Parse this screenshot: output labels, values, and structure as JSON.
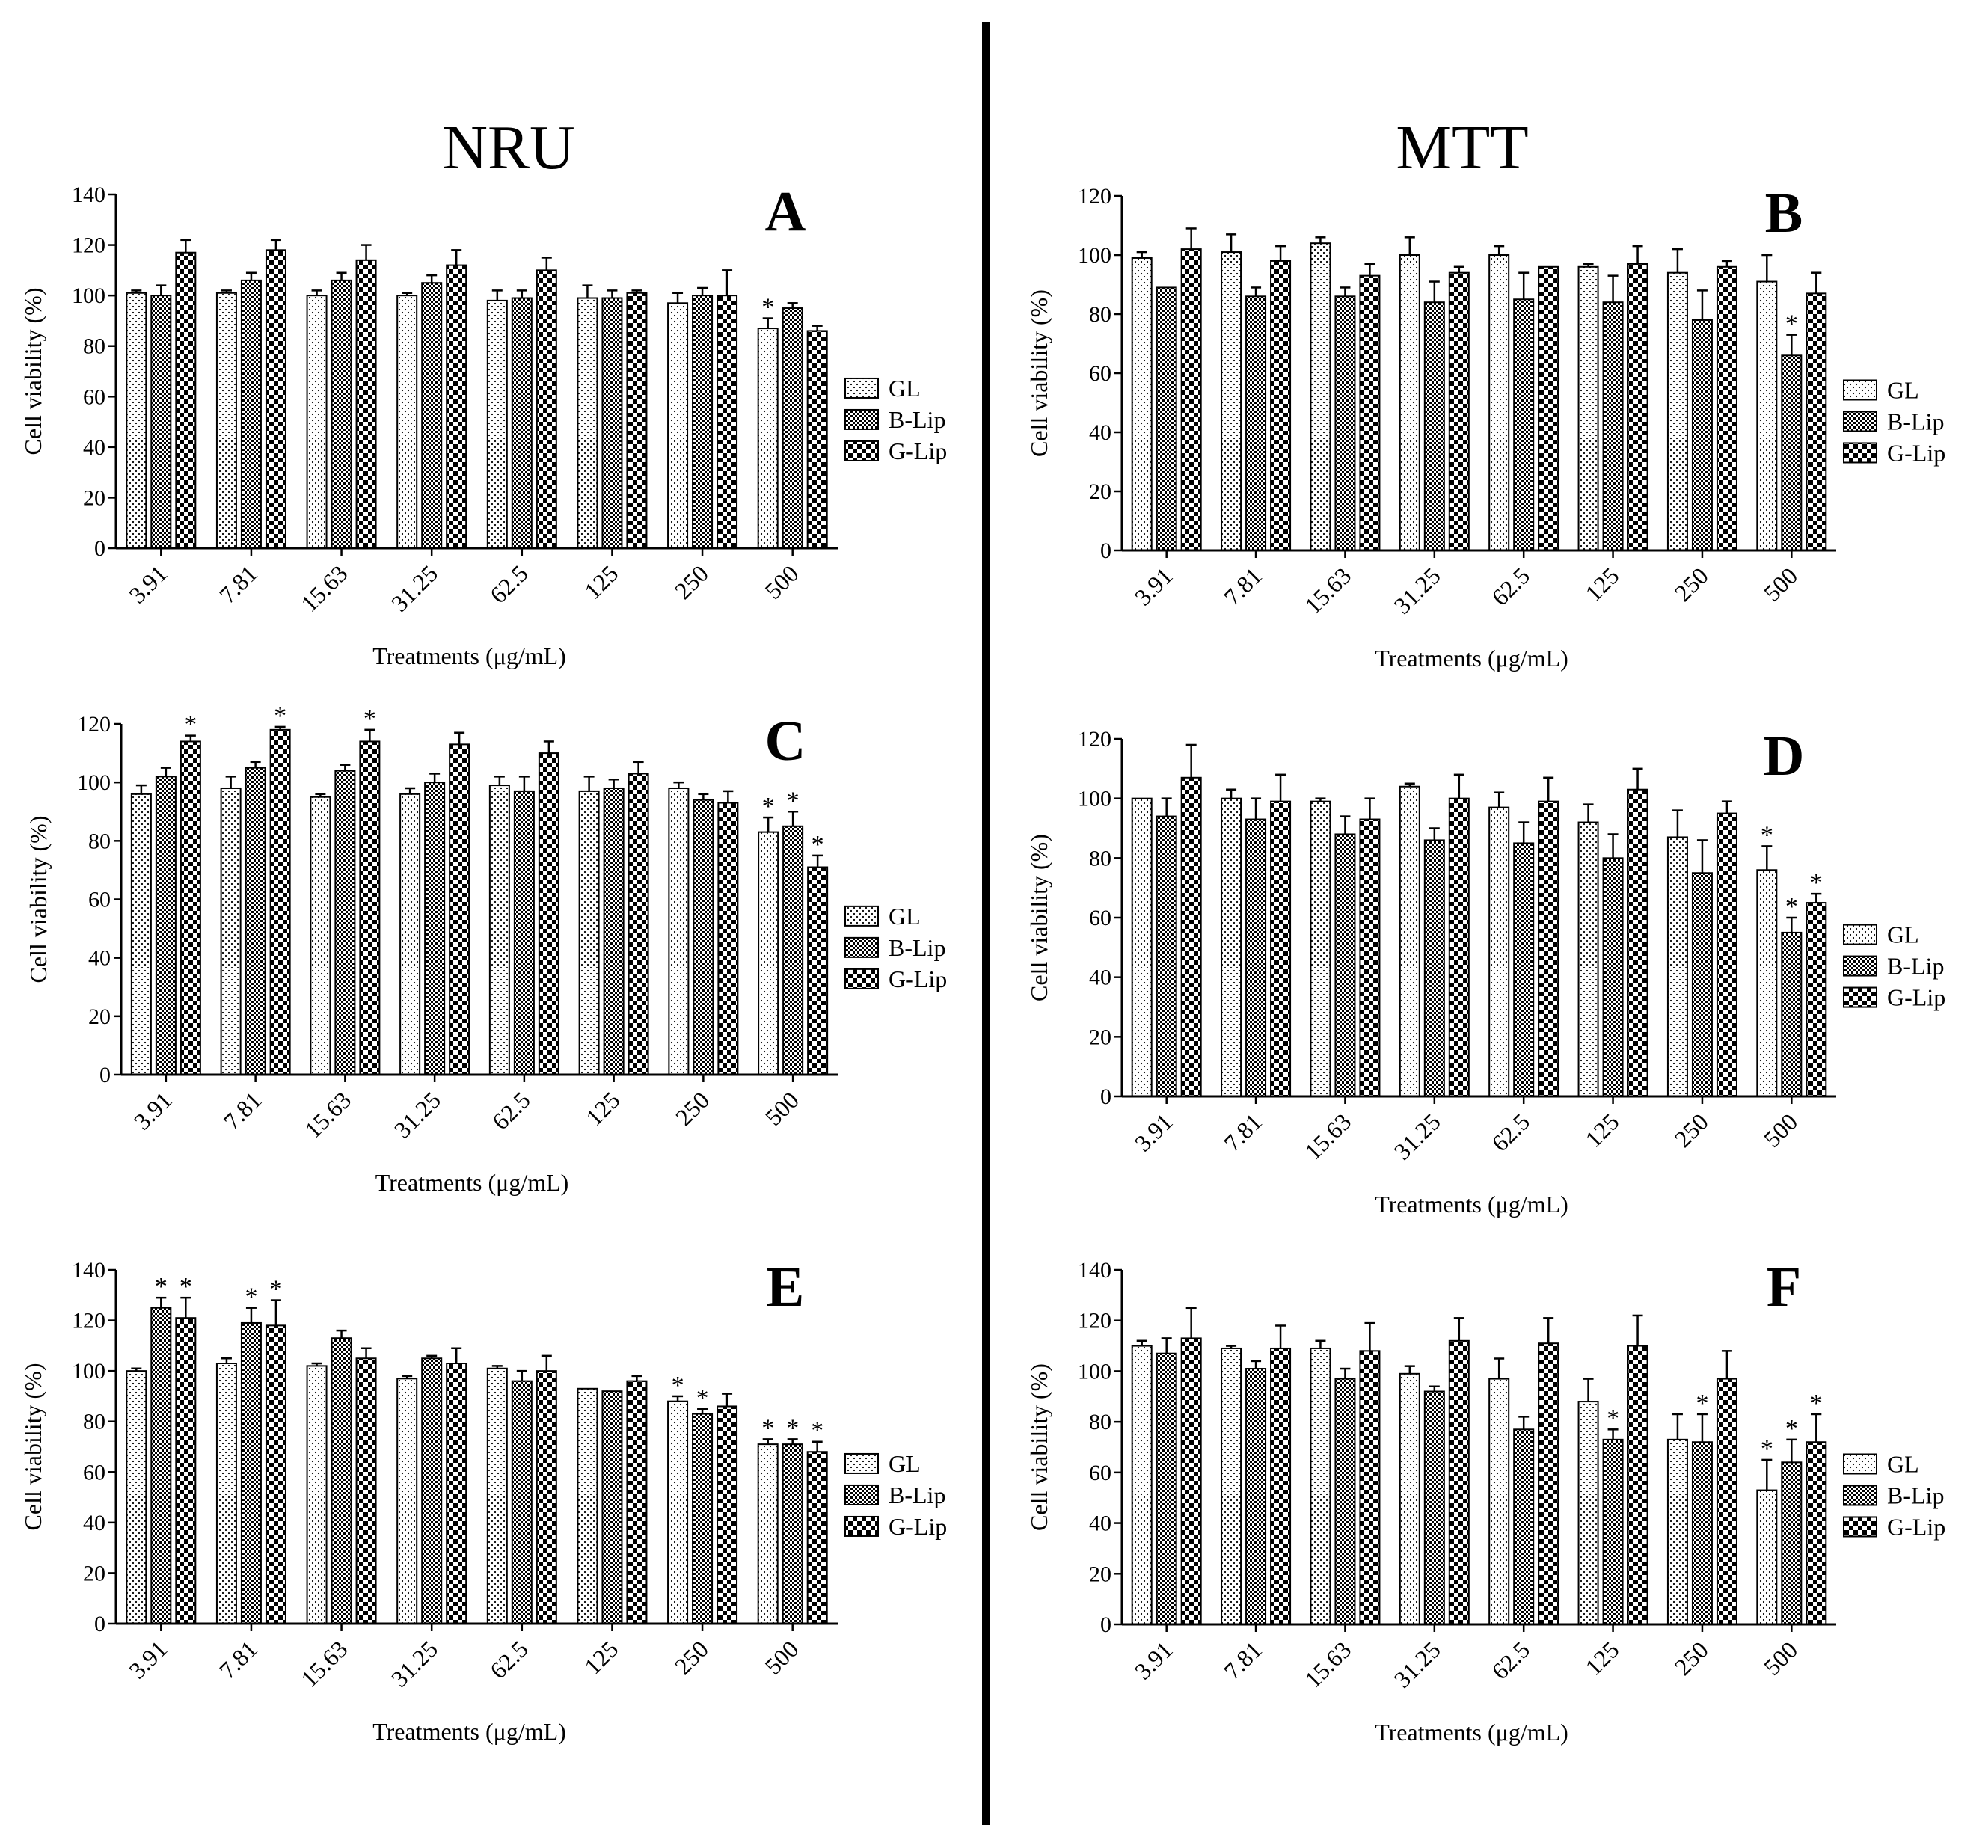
{
  "headers": {
    "left": "NRU",
    "right": "MTT"
  },
  "colors": {
    "bar_stroke": "#000000",
    "background": "#ffffff"
  },
  "chart_data": [
    {
      "panel": "A",
      "type": "bar",
      "assay": "NRU",
      "categories": [
        "3.91",
        "7.81",
        "15.63",
        "31.25",
        "62.5",
        "125",
        "250",
        "500"
      ],
      "xlabel": "Treatments (μg/mL)",
      "ylabel": "Cell viability (%)",
      "ylim": [
        0,
        140
      ],
      "yticks": [
        0,
        20,
        40,
        60,
        80,
        100,
        120,
        140
      ],
      "legend_position": "right",
      "series": [
        {
          "name": "GL",
          "pattern": "dots",
          "values": [
            101,
            101,
            100,
            100,
            98,
            99,
            97,
            87
          ],
          "errors": [
            1,
            1,
            2,
            1,
            4,
            5,
            4,
            4
          ],
          "sig": [
            false,
            false,
            false,
            false,
            false,
            false,
            false,
            true
          ]
        },
        {
          "name": "B-Lip",
          "pattern": "checker",
          "values": [
            100,
            106,
            106,
            105,
            99,
            99,
            100,
            95
          ],
          "errors": [
            4,
            3,
            3,
            3,
            3,
            3,
            3,
            2
          ],
          "sig": [
            false,
            false,
            false,
            false,
            false,
            false,
            false,
            false
          ]
        },
        {
          "name": "G-Lip",
          "pattern": "bigchecker",
          "values": [
            117,
            118,
            114,
            112,
            110,
            101,
            100,
            86
          ],
          "errors": [
            5,
            4,
            6,
            6,
            5,
            1,
            10,
            2
          ],
          "sig": [
            false,
            false,
            false,
            false,
            false,
            false,
            false,
            false
          ]
        }
      ]
    },
    {
      "panel": "B",
      "type": "bar",
      "assay": "MTT",
      "categories": [
        "3.91",
        "7.81",
        "15.63",
        "31.25",
        "62.5",
        "125",
        "250",
        "500"
      ],
      "xlabel": "Treatments (μg/mL)",
      "ylabel": "Cell viability (%)",
      "ylim": [
        0,
        120
      ],
      "yticks": [
        0,
        20,
        40,
        60,
        80,
        100,
        120
      ],
      "legend_position": "right",
      "series": [
        {
          "name": "GL",
          "pattern": "dots",
          "values": [
            99,
            101,
            104,
            100,
            100,
            96,
            94,
            91
          ],
          "errors": [
            2,
            6,
            2,
            6,
            3,
            1,
            8,
            9
          ],
          "sig": [
            false,
            false,
            false,
            false,
            false,
            false,
            false,
            false
          ]
        },
        {
          "name": "B-Lip",
          "pattern": "checker",
          "values": [
            89,
            86,
            86,
            84,
            85,
            84,
            78,
            66
          ],
          "errors": [
            0,
            3,
            3,
            7,
            9,
            9,
            10,
            7
          ],
          "sig": [
            false,
            false,
            false,
            false,
            false,
            false,
            false,
            true
          ]
        },
        {
          "name": "G-Lip",
          "pattern": "bigchecker",
          "values": [
            102,
            98,
            93,
            94,
            96,
            97,
            96,
            87
          ],
          "errors": [
            7,
            5,
            4,
            2,
            0,
            6,
            2,
            7
          ],
          "sig": [
            false,
            false,
            false,
            false,
            false,
            false,
            false,
            false
          ]
        }
      ]
    },
    {
      "panel": "C",
      "type": "bar",
      "assay": "NRU",
      "categories": [
        "3.91",
        "7.81",
        "15.63",
        "31.25",
        "62.5",
        "125",
        "250",
        "500"
      ],
      "xlabel": "Treatments (μg/mL)",
      "ylabel": "Cell viability (%)",
      "ylim": [
        0,
        120
      ],
      "yticks": [
        0,
        20,
        40,
        60,
        80,
        100,
        120
      ],
      "legend_position": "right",
      "series": [
        {
          "name": "GL",
          "pattern": "dots",
          "values": [
            96,
            98,
            95,
            96,
            99,
            97,
            98,
            83
          ],
          "errors": [
            3,
            4,
            1,
            2,
            3,
            5,
            2,
            5
          ],
          "sig": [
            false,
            false,
            false,
            false,
            false,
            false,
            false,
            true
          ]
        },
        {
          "name": "B-Lip",
          "pattern": "checker",
          "values": [
            102,
            105,
            104,
            100,
            97,
            98,
            94,
            85
          ],
          "errors": [
            3,
            2,
            2,
            3,
            5,
            3,
            2,
            5
          ],
          "sig": [
            false,
            false,
            false,
            false,
            false,
            false,
            false,
            true
          ]
        },
        {
          "name": "G-Lip",
          "pattern": "bigchecker",
          "values": [
            114,
            118,
            114,
            113,
            110,
            103,
            93,
            71
          ],
          "errors": [
            2,
            1,
            4,
            4,
            4,
            4,
            4,
            4
          ],
          "sig": [
            true,
            true,
            true,
            false,
            false,
            false,
            false,
            true
          ]
        }
      ]
    },
    {
      "panel": "D",
      "type": "bar",
      "assay": "MTT",
      "categories": [
        "3.91",
        "7.81",
        "15.63",
        "31.25",
        "62.5",
        "125",
        "250",
        "500"
      ],
      "xlabel": "Treatments (μg/mL)",
      "ylabel": "Cell viability (%)",
      "ylim": [
        0,
        120
      ],
      "yticks": [
        0,
        20,
        40,
        60,
        80,
        100,
        120
      ],
      "legend_position": "right",
      "series": [
        {
          "name": "GL",
          "pattern": "dots",
          "values": [
            100,
            100,
            99,
            104,
            97,
            92,
            87,
            76
          ],
          "errors": [
            0,
            3,
            1,
            1,
            5,
            6,
            9,
            8
          ],
          "sig": [
            false,
            false,
            false,
            false,
            false,
            false,
            false,
            true
          ]
        },
        {
          "name": "B-Lip",
          "pattern": "checker",
          "values": [
            94,
            93,
            88,
            86,
            85,
            80,
            75,
            55
          ],
          "errors": [
            6,
            7,
            6,
            4,
            7,
            8,
            11,
            5
          ],
          "sig": [
            false,
            false,
            false,
            false,
            false,
            false,
            false,
            true
          ]
        },
        {
          "name": "G-Lip",
          "pattern": "bigchecker",
          "values": [
            107,
            99,
            93,
            100,
            99,
            103,
            95,
            65
          ],
          "errors": [
            11,
            9,
            7,
            8,
            8,
            7,
            4,
            3
          ],
          "sig": [
            false,
            false,
            false,
            false,
            false,
            false,
            false,
            true
          ]
        }
      ]
    },
    {
      "panel": "E",
      "type": "bar",
      "assay": "NRU",
      "categories": [
        "3.91",
        "7.81",
        "15.63",
        "31.25",
        "62.5",
        "125",
        "250",
        "500"
      ],
      "xlabel": "Treatments (μg/mL)",
      "ylabel": "Cell viability (%)",
      "ylim": [
        0,
        140
      ],
      "yticks": [
        0,
        20,
        40,
        60,
        80,
        100,
        120,
        140
      ],
      "legend_position": "right",
      "series": [
        {
          "name": "GL",
          "pattern": "dots",
          "values": [
            100,
            103,
            102,
            97,
            101,
            93,
            88,
            71
          ],
          "errors": [
            1,
            2,
            1,
            1,
            1,
            0,
            2,
            2
          ],
          "sig": [
            false,
            false,
            false,
            false,
            false,
            false,
            true,
            true
          ]
        },
        {
          "name": "B-Lip",
          "pattern": "checker",
          "values": [
            125,
            119,
            113,
            105,
            96,
            92,
            83,
            71
          ],
          "errors": [
            4,
            6,
            3,
            1,
            4,
            0,
            2,
            2
          ],
          "sig": [
            true,
            true,
            false,
            false,
            false,
            false,
            true,
            true
          ]
        },
        {
          "name": "G-Lip",
          "pattern": "bigchecker",
          "values": [
            121,
            118,
            105,
            103,
            100,
            96,
            86,
            68
          ],
          "errors": [
            8,
            10,
            4,
            6,
            6,
            2,
            5,
            4
          ],
          "sig": [
            true,
            true,
            false,
            false,
            false,
            false,
            false,
            true
          ]
        }
      ]
    },
    {
      "panel": "F",
      "type": "bar",
      "assay": "MTT",
      "categories": [
        "3.91",
        "7.81",
        "15.63",
        "31.25",
        "62.5",
        "125",
        "250",
        "500"
      ],
      "xlabel": "Treatments (μg/mL)",
      "ylabel": "Cell viability (%)",
      "ylim": [
        0,
        140
      ],
      "yticks": [
        0,
        20,
        40,
        60,
        80,
        100,
        120,
        140
      ],
      "legend_position": "right",
      "series": [
        {
          "name": "GL",
          "pattern": "dots",
          "values": [
            110,
            109,
            109,
            99,
            97,
            88,
            73,
            53
          ],
          "errors": [
            2,
            1,
            3,
            3,
            8,
            9,
            10,
            12
          ],
          "sig": [
            false,
            false,
            false,
            false,
            false,
            false,
            false,
            true
          ]
        },
        {
          "name": "B-Lip",
          "pattern": "checker",
          "values": [
            107,
            101,
            97,
            92,
            77,
            73,
            72,
            64
          ],
          "errors": [
            6,
            3,
            4,
            2,
            5,
            4,
            11,
            9
          ],
          "sig": [
            false,
            false,
            false,
            false,
            false,
            true,
            true,
            true
          ]
        },
        {
          "name": "G-Lip",
          "pattern": "bigchecker",
          "values": [
            113,
            109,
            108,
            112,
            111,
            110,
            97,
            72
          ],
          "errors": [
            12,
            9,
            11,
            9,
            10,
            12,
            11,
            11
          ],
          "sig": [
            false,
            false,
            false,
            false,
            false,
            false,
            false,
            true
          ]
        }
      ]
    }
  ]
}
